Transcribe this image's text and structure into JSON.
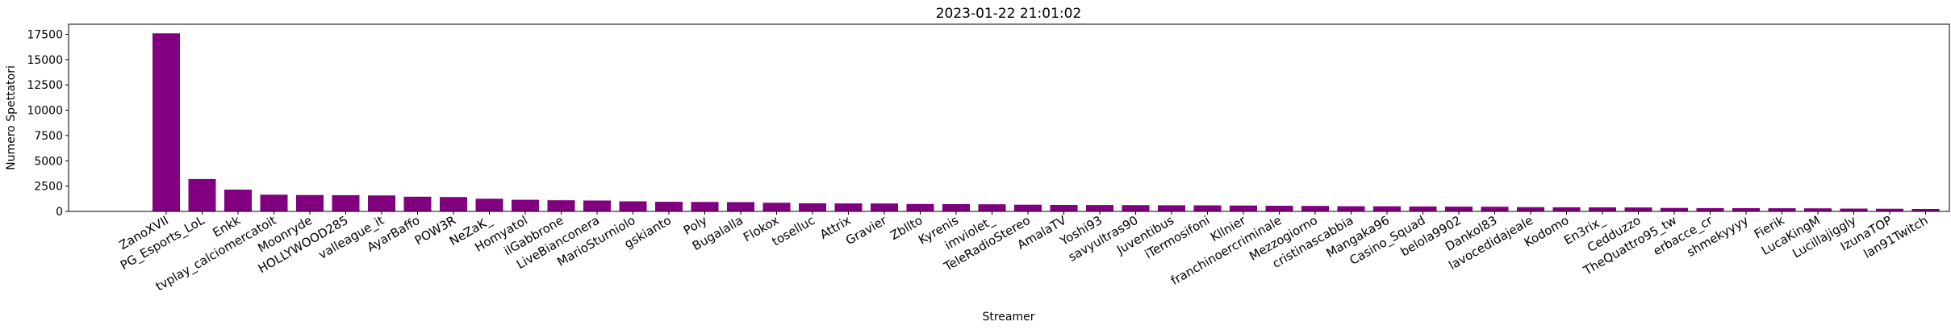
{
  "chart_data": {
    "type": "bar",
    "title": "2023-01-22 21:01:02",
    "xlabel": "Streamer",
    "ylabel": "Numero Spettatori",
    "ylim": [
      0,
      18500
    ],
    "yticks": [
      0,
      2500,
      5000,
      7500,
      10000,
      12500,
      15000,
      17500
    ],
    "ytick_labels": [
      "0",
      "2500",
      "5000",
      "7500",
      "10000",
      "12500",
      "15000",
      "17500"
    ],
    "bar_color": "#800080",
    "grid": false,
    "categories": [
      "ZanoXVII",
      "PG_Esports_LoL",
      "Enkk",
      "tvplay_calciomercatoit",
      "Moonryde",
      "HOLLYWOOD285",
      "valleague_it",
      "AyarBaffo",
      "POW3R",
      "NeZaK_",
      "Homyatol",
      "ilGabbrone",
      "LiveBianconera",
      "MarioSturniolo",
      "gskianto",
      "Poly",
      "Bugalalla",
      "Flokox",
      "toselluc",
      "Attrix",
      "Gravier",
      "Zbllto",
      "Kyrenis",
      "imviolet_",
      "TeleRadioStereo",
      "AmalaTV",
      "Yoshi93",
      "savyultras90",
      "Juventibus",
      "iTermosifoni",
      "Kllnier",
      "franchinoercriminale",
      "Mezzogiorno",
      "cristinascabbia",
      "Mangaka96",
      "Casino_Squad",
      "belola9902",
      "Dankol83",
      "lavocedidajeale",
      "Kodomo",
      "En3rix_",
      "Cedduzzo",
      "TheQuattro95_tw",
      "erbacce_cr",
      "shmekyyyy",
      "Fierik",
      "LucaKingM",
      "Lucillajiggly",
      "IzunaTOP",
      "lan91Twitch"
    ],
    "values": [
      17600,
      3200,
      2150,
      1650,
      1620,
      1600,
      1580,
      1450,
      1420,
      1250,
      1150,
      1100,
      1080,
      1000,
      950,
      930,
      920,
      850,
      800,
      790,
      780,
      730,
      720,
      700,
      660,
      640,
      630,
      620,
      610,
      600,
      580,
      560,
      540,
      510,
      500,
      490,
      470,
      460,
      420,
      410,
      400,
      390,
      340,
      330,
      320,
      310,
      300,
      280,
      260,
      240
    ]
  }
}
